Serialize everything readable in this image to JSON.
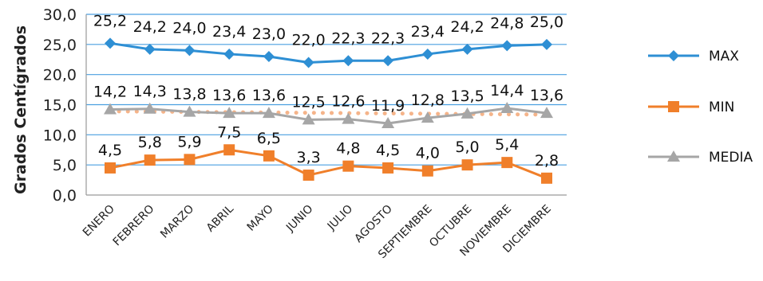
{
  "chart_data": {
    "type": "line",
    "title": "",
    "xlabel": "",
    "ylabel": "Grados Centígrados",
    "ylim": [
      0,
      30
    ],
    "yticks": [
      "0,0",
      "5,0",
      "10,0",
      "15,0",
      "20,0",
      "25,0",
      "30,0"
    ],
    "grid": true,
    "legend_position": "right",
    "categories": [
      "ENERO",
      "FEBRERO",
      "MARZO",
      "ABRIL",
      "MAYO",
      "JUNIO",
      "JULIO",
      "AGOSTO",
      "SEPTIEMBRE",
      "OCTUBRE",
      "NOVIEMBRE",
      "DICIEMBRE"
    ],
    "series": [
      {
        "name": "MAX",
        "color": "#2e8fd4",
        "marker": "diamond",
        "values": [
          25.2,
          24.2,
          24.0,
          23.4,
          23.0,
          22.0,
          22.3,
          22.3,
          23.4,
          24.2,
          24.8,
          25.0
        ],
        "labels": [
          "25,2",
          "24,2",
          "24,0",
          "23,4",
          "23,0",
          "22,0",
          "22,3",
          "22,3",
          "23,4",
          "24,2",
          "24,8",
          "25,0"
        ]
      },
      {
        "name": "MIN",
        "color": "#f07f2a",
        "marker": "square",
        "values": [
          4.5,
          5.8,
          5.9,
          7.5,
          6.5,
          3.3,
          4.8,
          4.5,
          4.0,
          5.0,
          5.4,
          2.8
        ],
        "labels": [
          "4,5",
          "5,8",
          "5,9",
          "7,5",
          "6,5",
          "3,3",
          "4,8",
          "4,5",
          "4,0",
          "5,0",
          "5,4",
          "2,8"
        ]
      },
      {
        "name": "MEDIA",
        "color": "#a6a6a6",
        "marker": "triangle",
        "values": [
          14.2,
          14.3,
          13.8,
          13.6,
          13.6,
          12.5,
          12.6,
          11.9,
          12.8,
          13.5,
          14.4,
          13.6
        ],
        "labels": [
          "14,2",
          "14,3",
          "13,8",
          "13,6",
          "13,6",
          "12,5",
          "12,6",
          "11,9",
          "12,8",
          "13,5",
          "14,4",
          "13,6"
        ]
      }
    ],
    "trendline": {
      "series": "MEDIA",
      "color": "#f5b48a",
      "style": "dotted",
      "values": [
        13.9,
        13.85,
        13.8,
        13.75,
        13.7,
        13.65,
        13.6,
        13.55,
        13.5,
        13.45,
        13.4,
        13.35
      ]
    }
  }
}
